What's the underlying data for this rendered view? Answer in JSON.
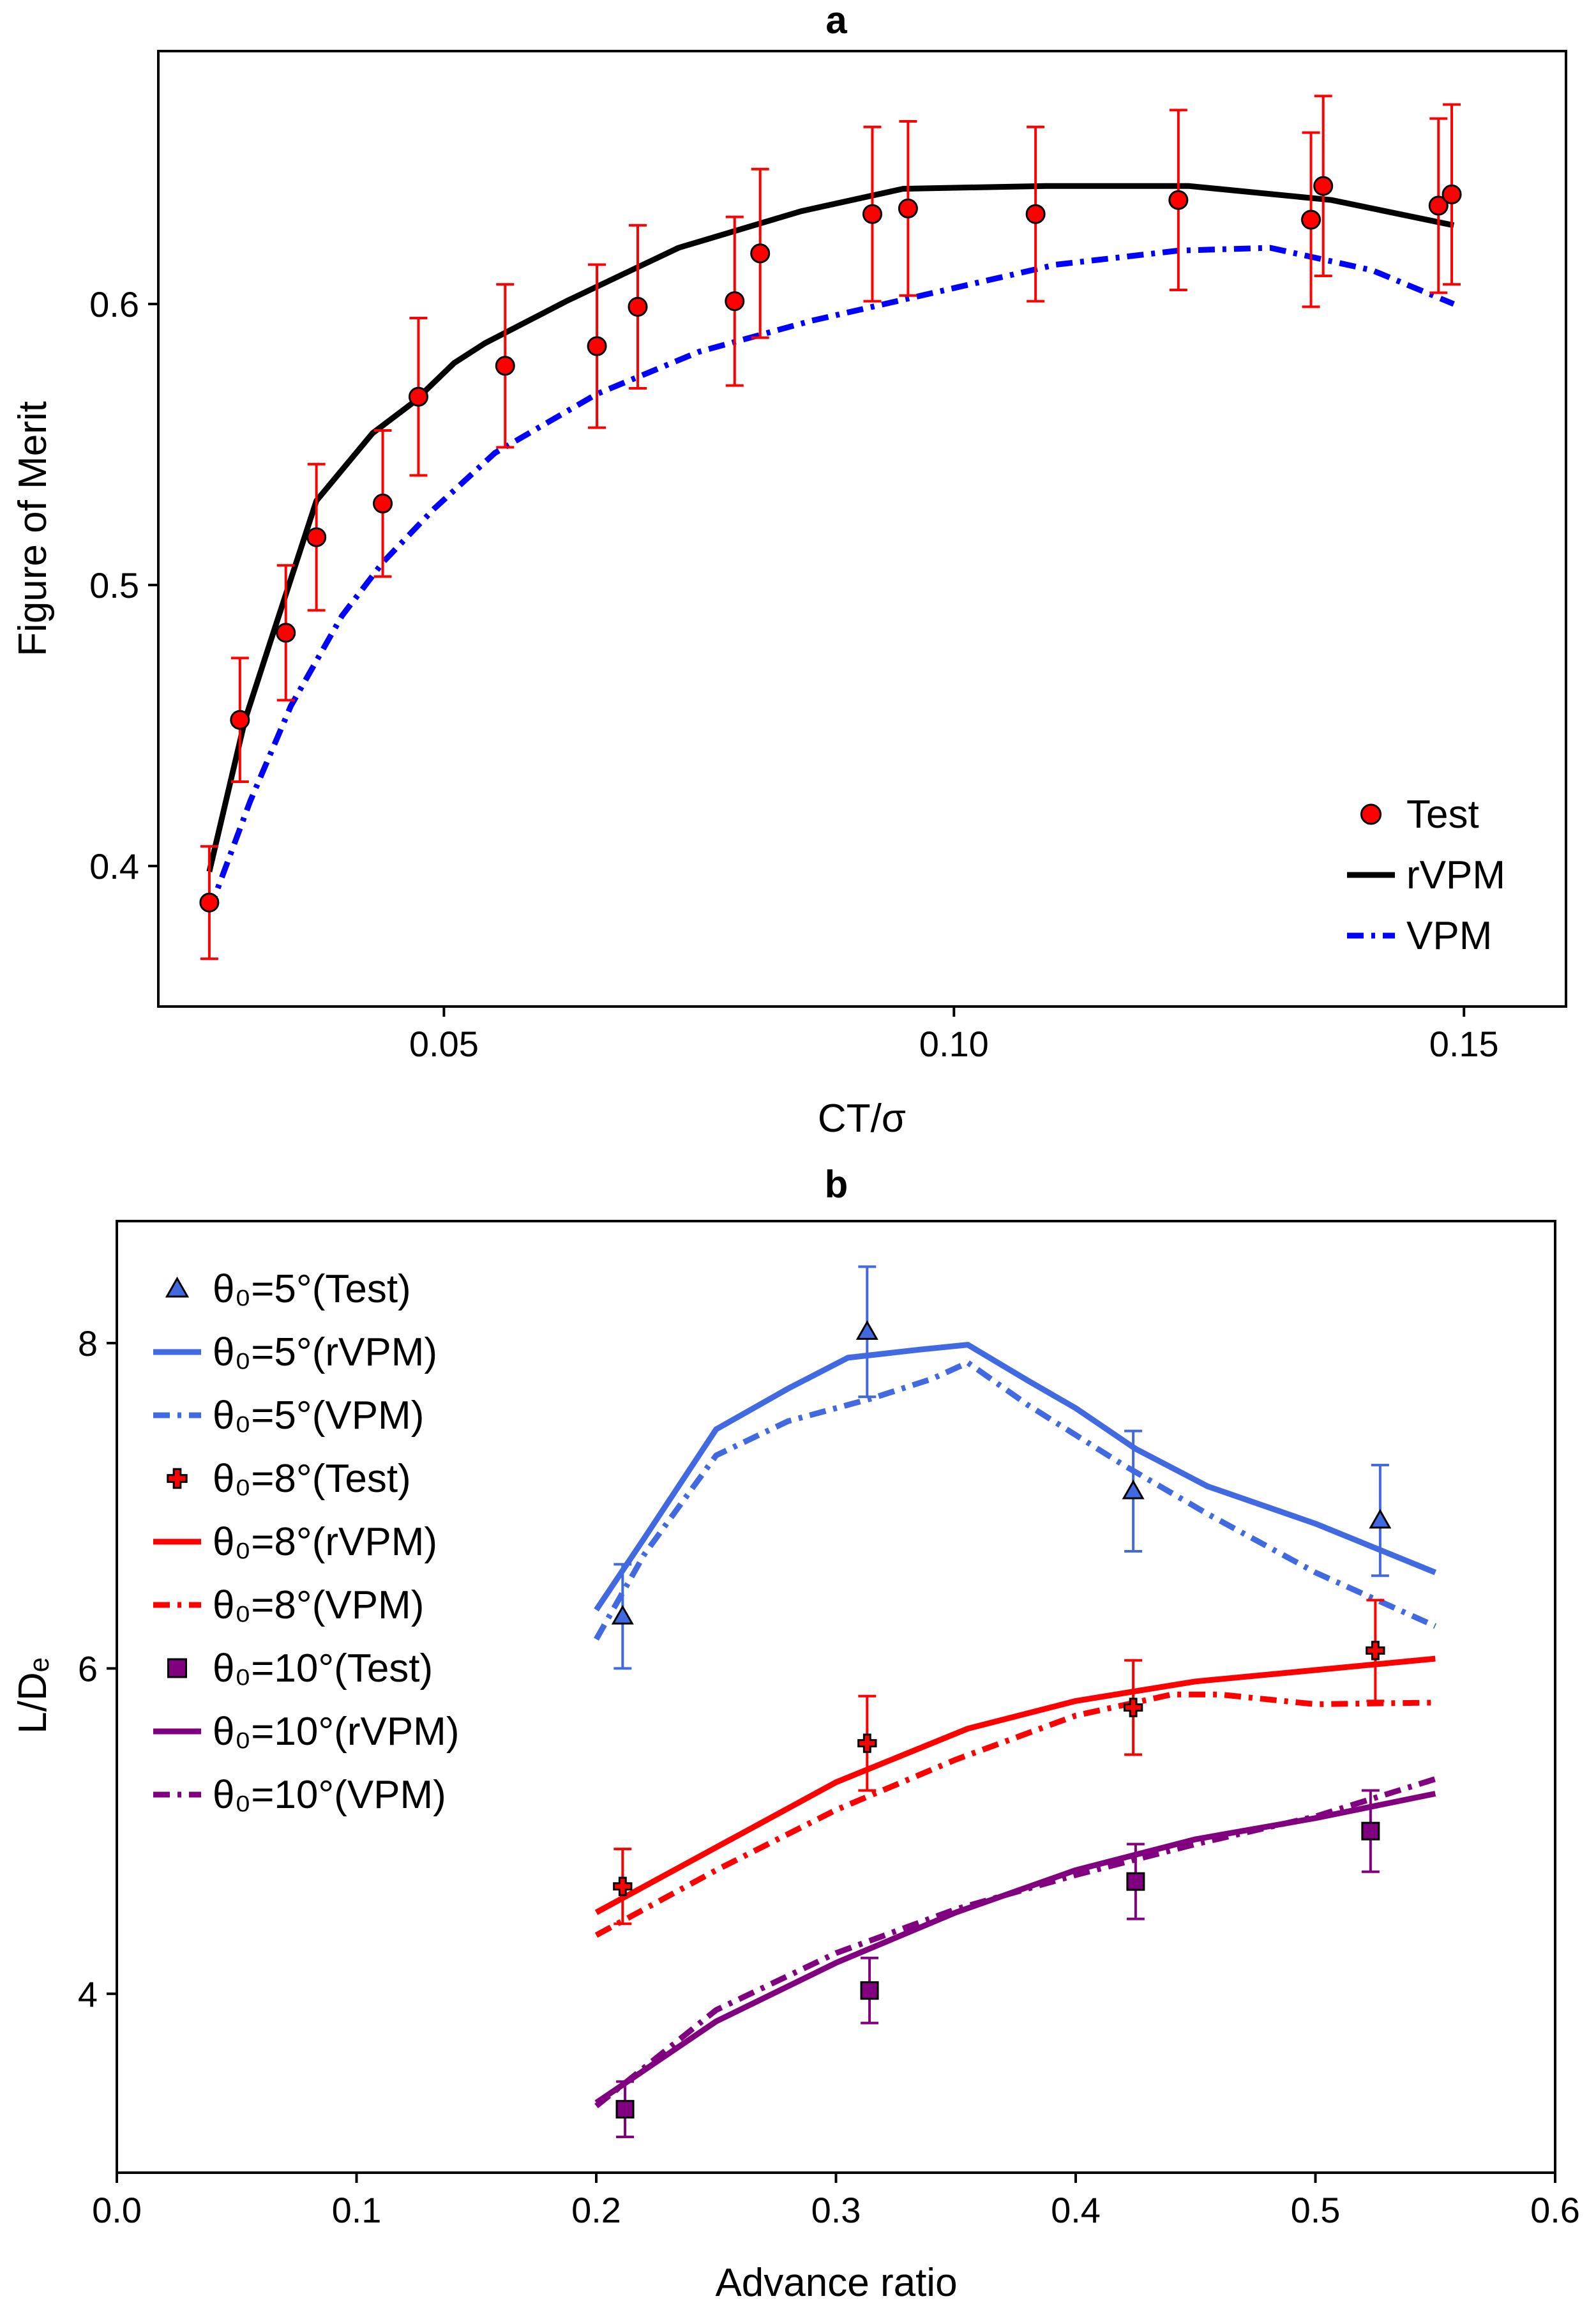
{
  "chart_data": [
    {
      "type": "line",
      "title": "a",
      "xlabel": "CT/σ",
      "ylabel": "Figure of Merit",
      "xlim": [
        0.022,
        0.16
      ],
      "ylim": [
        0.35,
        0.69
      ],
      "xticks": [
        0.05,
        0.1,
        0.15
      ],
      "xtick_labels": [
        "0.05",
        "0.10",
        "0.15"
      ],
      "yticks": [
        0.4,
        0.5,
        0.6
      ],
      "ytick_labels": [
        "0.4",
        "0.5",
        "0.6"
      ],
      "grid": false,
      "legend_position": "bottom-right",
      "series": [
        {
          "name": "Test",
          "kind": "scatter",
          "color": "#ff0000",
          "edge": "#000000",
          "marker": "circle",
          "x": [
            0.027,
            0.03,
            0.0345,
            0.0375,
            0.044,
            0.0475,
            0.056,
            0.065,
            0.069,
            0.0785,
            0.081,
            0.092,
            0.0955,
            0.108,
            0.122,
            0.135,
            0.1362,
            0.1475,
            0.1488
          ],
          "y": [
            0.387,
            0.452,
            0.483,
            0.517,
            0.529,
            0.567,
            0.578,
            0.585,
            0.599,
            0.601,
            0.618,
            0.632,
            0.634,
            0.632,
            0.637,
            0.63,
            0.642,
            0.635,
            0.639
          ],
          "err": [
            0.02,
            0.022,
            0.024,
            0.026,
            0.026,
            0.028,
            0.029,
            0.029,
            0.029,
            0.03,
            0.03,
            0.031,
            0.031,
            0.031,
            0.032,
            0.031,
            0.032,
            0.031,
            0.032
          ]
        },
        {
          "name": "rVPM",
          "kind": "line",
          "color": "#000000",
          "dash": "solid",
          "x": [
            0.027,
            0.0305,
            0.033,
            0.0375,
            0.043,
            0.047,
            0.051,
            0.054,
            0.062,
            0.073,
            0.085,
            0.095,
            0.109,
            0.123,
            0.137,
            0.149
          ],
          "y": [
            0.398,
            0.452,
            0.48,
            0.53,
            0.554,
            0.565,
            0.579,
            0.586,
            0.601,
            0.62,
            0.633,
            0.641,
            0.642,
            0.642,
            0.637,
            0.628
          ]
        },
        {
          "name": "VPM",
          "kind": "line",
          "color": "#0000ff",
          "dash": "dashdot",
          "x": [
            0.027,
            0.031,
            0.035,
            0.04,
            0.044,
            0.049,
            0.055,
            0.065,
            0.075,
            0.086,
            0.098,
            0.11,
            0.122,
            0.131,
            0.141,
            0.149
          ],
          "y": [
            0.384,
            0.423,
            0.457,
            0.489,
            0.508,
            0.527,
            0.547,
            0.568,
            0.583,
            0.594,
            0.604,
            0.614,
            0.619,
            0.62,
            0.612,
            0.6
          ]
        }
      ]
    },
    {
      "type": "line",
      "title": "b",
      "xlabel": "Advance ratio",
      "ylabel": "L/Dₑ",
      "xlim": [
        0.0,
        0.6
      ],
      "ylim": [
        2.9,
        8.75
      ],
      "xticks": [
        0.0,
        0.1,
        0.2,
        0.3,
        0.4,
        0.5,
        0.6
      ],
      "xtick_labels": [
        "0.0",
        "0.1",
        "0.2",
        "0.3",
        "0.4",
        "0.5",
        "0.6"
      ],
      "yticks": [
        4,
        6,
        8
      ],
      "ytick_labels": [
        "4",
        "6",
        "8"
      ],
      "grid": false,
      "legend_position": "top-left",
      "series": [
        {
          "name": "θ₀=5°(Test)",
          "kind": "scatter",
          "color": "#4169e1",
          "marker": "triangle",
          "x": [
            0.211,
            0.313,
            0.424,
            0.527
          ],
          "y": [
            6.32,
            8.07,
            7.09,
            6.91
          ],
          "err": [
            0.32,
            0.4,
            0.37,
            0.34
          ]
        },
        {
          "name": "θ₀=5°(rVPM)",
          "kind": "line",
          "color": "#4169e1",
          "dash": "solid",
          "x": [
            0.2,
            0.22,
            0.25,
            0.28,
            0.305,
            0.335,
            0.355,
            0.38,
            0.4,
            0.425,
            0.455,
            0.5,
            0.55
          ],
          "y": [
            6.36,
            6.8,
            7.47,
            7.72,
            7.91,
            7.96,
            7.99,
            7.77,
            7.6,
            7.35,
            7.12,
            6.89,
            6.59
          ]
        },
        {
          "name": "θ₀=5°(VPM)",
          "kind": "line",
          "color": "#4169e1",
          "dash": "dashdot",
          "x": [
            0.2,
            0.22,
            0.25,
            0.28,
            0.315,
            0.34,
            0.355,
            0.38,
            0.42,
            0.455,
            0.5,
            0.55
          ],
          "y": [
            6.18,
            6.7,
            7.31,
            7.52,
            7.66,
            7.78,
            7.88,
            7.62,
            7.25,
            6.95,
            6.59,
            6.26
          ]
        },
        {
          "name": "θ₀=8°(Test)",
          "kind": "scatter",
          "color": "#ff0000",
          "marker": "cross",
          "x": [
            0.211,
            0.313,
            0.424,
            0.525
          ],
          "y": [
            4.66,
            5.54,
            5.76,
            6.11
          ],
          "err": [
            0.23,
            0.29,
            0.29,
            0.31
          ]
        },
        {
          "name": "θ₀=8°(rVPM)",
          "kind": "line",
          "color": "#ff0000",
          "dash": "solid",
          "x": [
            0.2,
            0.25,
            0.3,
            0.355,
            0.4,
            0.45,
            0.5,
            0.55
          ],
          "y": [
            4.5,
            4.9,
            5.3,
            5.63,
            5.8,
            5.92,
            5.99,
            6.06
          ]
        },
        {
          "name": "θ₀=8°(VPM)",
          "kind": "line",
          "color": "#ff0000",
          "dash": "dashdot",
          "x": [
            0.2,
            0.25,
            0.3,
            0.35,
            0.4,
            0.44,
            0.46,
            0.5,
            0.55
          ],
          "y": [
            4.36,
            4.76,
            5.13,
            5.44,
            5.71,
            5.84,
            5.84,
            5.78,
            5.79
          ]
        },
        {
          "name": "θ₀=10°(Test)",
          "kind": "scatter",
          "color": "#800080",
          "marker": "square",
          "x": [
            0.212,
            0.314,
            0.425,
            0.523
          ],
          "y": [
            3.29,
            4.02,
            4.69,
            5.0
          ],
          "err": [
            0.17,
            0.2,
            0.23,
            0.25
          ]
        },
        {
          "name": "θ₀=10°(rVPM)",
          "kind": "line",
          "color": "#800080",
          "dash": "solid",
          "x": [
            0.2,
            0.25,
            0.3,
            0.35,
            0.4,
            0.45,
            0.5,
            0.55
          ],
          "y": [
            3.33,
            3.83,
            4.19,
            4.5,
            4.76,
            4.95,
            5.08,
            5.23
          ]
        },
        {
          "name": "θ₀=10°(VPM)",
          "kind": "line",
          "color": "#800080",
          "dash": "dashdot",
          "x": [
            0.2,
            0.25,
            0.3,
            0.35,
            0.4,
            0.45,
            0.5,
            0.55
          ],
          "y": [
            3.31,
            3.9,
            4.25,
            4.52,
            4.73,
            4.92,
            5.09,
            5.32
          ]
        }
      ]
    }
  ]
}
